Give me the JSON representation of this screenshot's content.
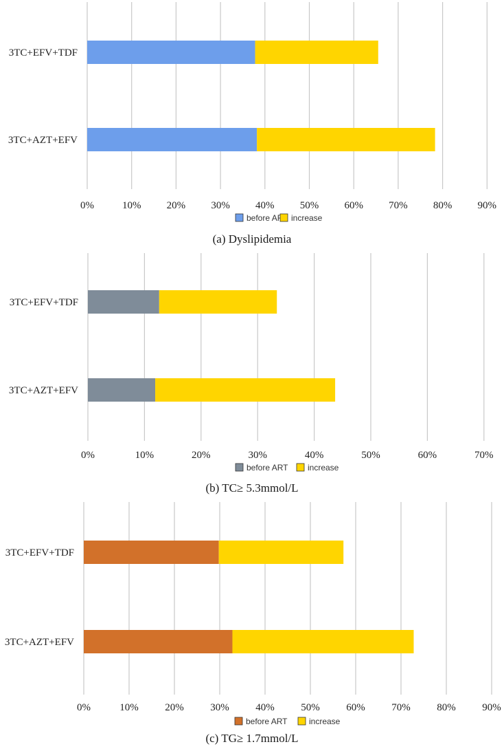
{
  "chart_data": [
    {
      "type": "bar",
      "orientation": "horizontal",
      "stacked": true,
      "caption": "(a) Dyslipidemia",
      "categories": [
        "3TC+EFV+TDF",
        "3TC+AZT+EFV"
      ],
      "series": [
        {
          "name": "before ART",
          "color": "#6d9eeb",
          "values": [
            37.8,
            38.2
          ]
        },
        {
          "name": "increase",
          "color": "#ffd500",
          "values": [
            27.7,
            40.1
          ]
        }
      ],
      "xticks": [
        "0%",
        "10%",
        "20%",
        "30%",
        "40%",
        "50%",
        "60%",
        "70%",
        "80%",
        "90%"
      ],
      "xlim": [
        0,
        90
      ],
      "grid": true,
      "legend": "bottom"
    },
    {
      "type": "bar",
      "orientation": "horizontal",
      "stacked": true,
      "caption": "(b) TC≥ 5.3mmol/L",
      "categories": [
        "3TC+EFV+TDF",
        "3TC+AZT+EFV"
      ],
      "series": [
        {
          "name": "before ART",
          "color": "#7f8c99",
          "values": [
            12.6,
            11.9
          ]
        },
        {
          "name": "increase",
          "color": "#ffd500",
          "values": [
            20.8,
            31.8
          ]
        }
      ],
      "xticks": [
        "0%",
        "10%",
        "20%",
        "30%",
        "40%",
        "50%",
        "60%",
        "70%"
      ],
      "xlim": [
        0,
        70
      ],
      "grid": true,
      "legend": "bottom"
    },
    {
      "type": "bar",
      "orientation": "horizontal",
      "stacked": true,
      "caption": "(c) TG≥ 1.7mmol/L",
      "categories": [
        "3TC+EFV+TDF",
        "3TC+AZT+EFV"
      ],
      "series": [
        {
          "name": "before ART",
          "color": "#d2712a",
          "values": [
            29.8,
            32.8
          ]
        },
        {
          "name": "increase",
          "color": "#ffd500",
          "values": [
            27.5,
            40.0
          ]
        }
      ],
      "xticks": [
        "0%",
        "10%",
        "20%",
        "30%",
        "40%",
        "50%",
        "60%",
        "70%",
        "80%",
        "90%"
      ],
      "xlim": [
        0,
        90
      ],
      "grid": true,
      "legend": "bottom"
    }
  ]
}
